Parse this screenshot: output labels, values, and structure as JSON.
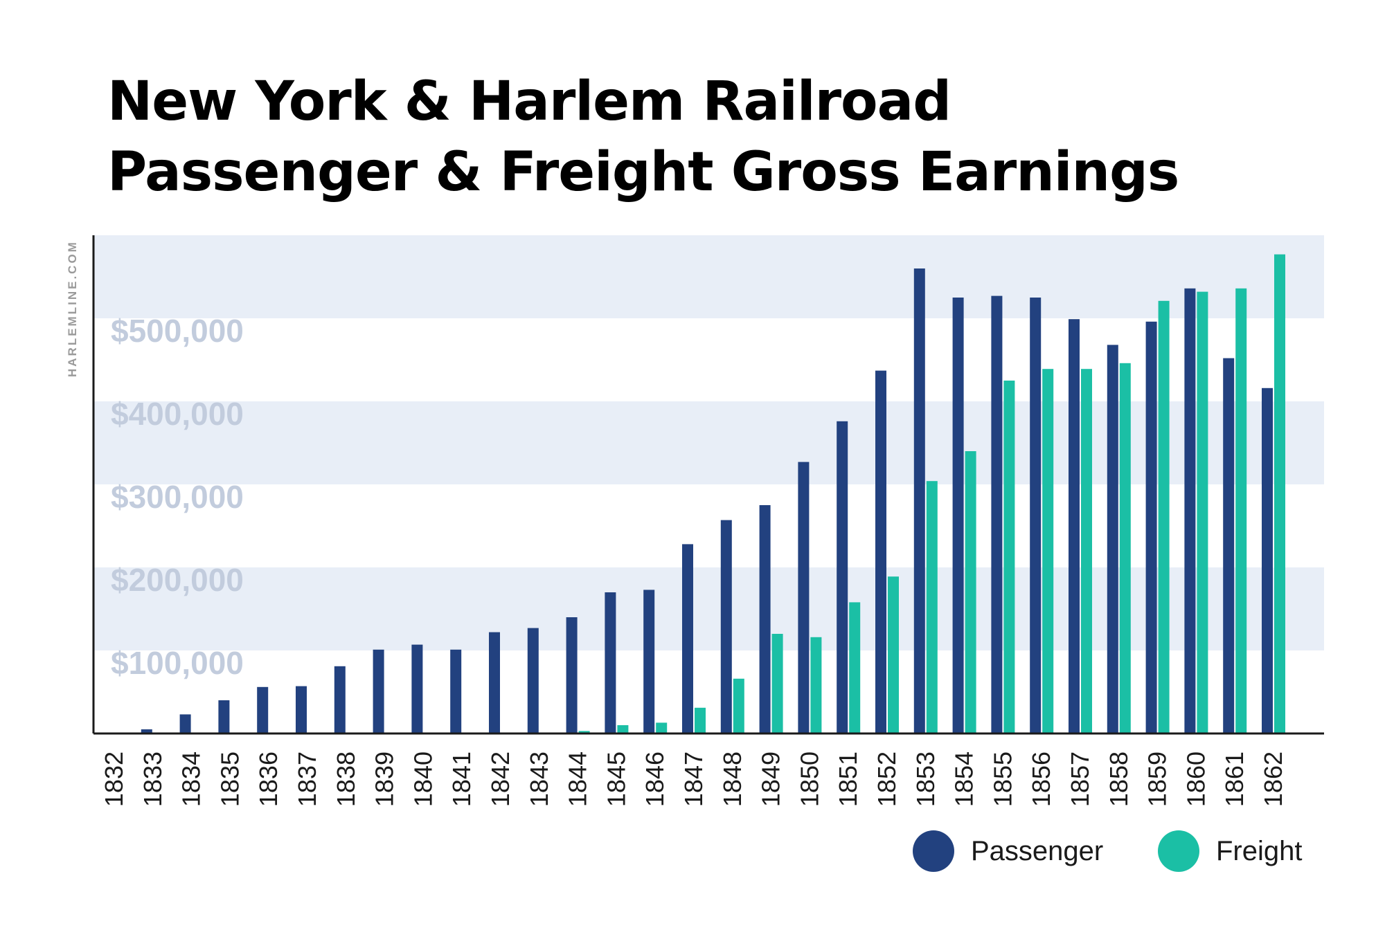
{
  "title": {
    "line1": "New York & Harlem Railroad",
    "line2": "Passenger & Freight Gross Earnings"
  },
  "watermark": "HARLEMLINE.COM",
  "colors": {
    "passenger": "#22417f",
    "freight": "#1bbfa5",
    "band": "#e8eef7",
    "band_label": "#c2ccdd",
    "axis": "#1a1a1a"
  },
  "legend": [
    {
      "label": "Passenger",
      "color": "#22417f"
    },
    {
      "label": "Freight",
      "color": "#1bbfa5"
    }
  ],
  "chart_data": {
    "type": "bar",
    "title": "New York & Harlem Railroad Passenger & Freight Gross Earnings",
    "xlabel": "",
    "ylabel": "",
    "ylim": [
      0,
      600000
    ],
    "y_ticks": [
      100000,
      200000,
      300000,
      400000,
      500000
    ],
    "y_tick_labels": [
      "$100,000",
      "$200,000",
      "$300,000",
      "$400,000",
      "$500,000"
    ],
    "grid": "alternating horizontal bands",
    "legend_position": "bottom-right",
    "categories": [
      "1832",
      "1833",
      "1834",
      "1835",
      "1836",
      "1837",
      "1838",
      "1839",
      "1840",
      "1841",
      "1842",
      "1843",
      "1844",
      "1845",
      "1846",
      "1847",
      "1848",
      "1849",
      "1850",
      "1851",
      "1852",
      "1853",
      "1854",
      "1855",
      "1856",
      "1857",
      "1858",
      "1859",
      "1860",
      "1861",
      "1862"
    ],
    "series": [
      {
        "name": "Passenger",
        "color": "#22417f",
        "values": [
          1000,
          5000,
          23000,
          40000,
          56000,
          57000,
          81000,
          101000,
          107000,
          101000,
          122000,
          127000,
          140000,
          170000,
          173000,
          228000,
          257000,
          275000,
          327000,
          376000,
          437000,
          560000,
          525000,
          527000,
          525000,
          499000,
          468000,
          496000,
          536000,
          452000,
          416000
        ]
      },
      {
        "name": "Freight",
        "color": "#1bbfa5",
        "values": [
          0,
          0,
          0,
          0,
          0,
          0,
          0,
          0,
          0,
          0,
          0,
          0,
          3000,
          10000,
          13000,
          31000,
          66000,
          120000,
          116000,
          158000,
          189000,
          304000,
          340000,
          425000,
          439000,
          439000,
          446000,
          521000,
          532000,
          536000,
          577000
        ]
      }
    ]
  }
}
